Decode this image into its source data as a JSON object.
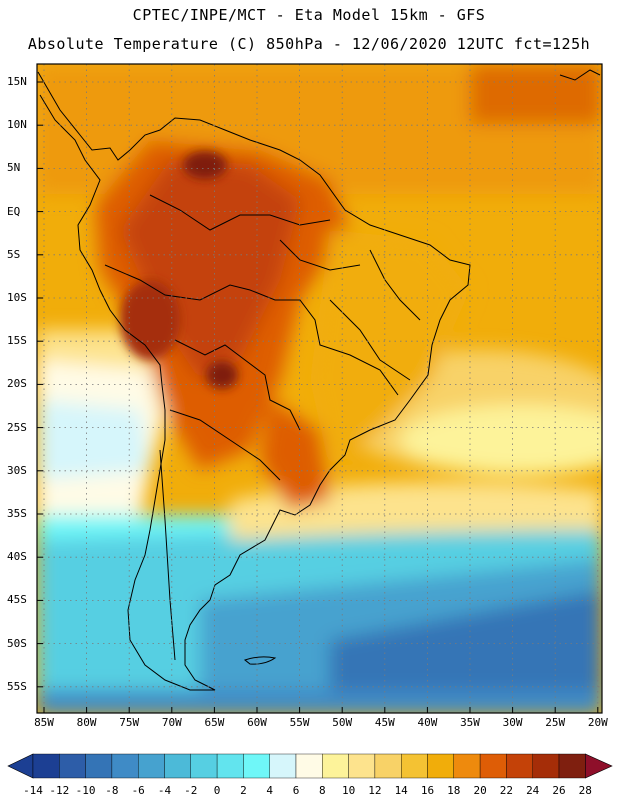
{
  "header": {
    "line1": "CPTEC/INPE/MCT -  Eta Model 15km - GFS",
    "line2": "Absolute Temperature (C) 850hPa - 12/06/2020 12UTC fct=125h"
  },
  "map": {
    "lat_labels": [
      "15N",
      "10N",
      "5N",
      "EQ",
      "5S",
      "10S",
      "15S",
      "20S",
      "25S",
      "30S",
      "35S",
      "40S",
      "45S",
      "50S",
      "55S"
    ],
    "lon_labels": [
      "85W",
      "80W",
      "75W",
      "70W",
      "65W",
      "60W",
      "55W",
      "50W",
      "45W",
      "40W",
      "35W",
      "30W",
      "25W",
      "20W"
    ]
  },
  "colorbar": {
    "labels": [
      "-14",
      "-12",
      "-10",
      "-8",
      "-6",
      "-4",
      "-2",
      "0",
      "2",
      "4",
      "6",
      "8",
      "10",
      "12",
      "14",
      "16",
      "18",
      "20",
      "22",
      "24",
      "26",
      "28"
    ],
    "colors": [
      "#1c3f93",
      "#2d5da8",
      "#3474b6",
      "#3f8bc6",
      "#46a2cf",
      "#4cbad8",
      "#56cfe2",
      "#62e4ee",
      "#6ff7f8",
      "#d6f6fb",
      "#fffbe6",
      "#fdf39a",
      "#fde38d",
      "#f8d267",
      "#f4c233",
      "#f1ad0a",
      "#ee8a0d",
      "#de5d06",
      "#c44208",
      "#a52d08",
      "#7f1f0f",
      "#8e0f2a"
    ]
  }
}
